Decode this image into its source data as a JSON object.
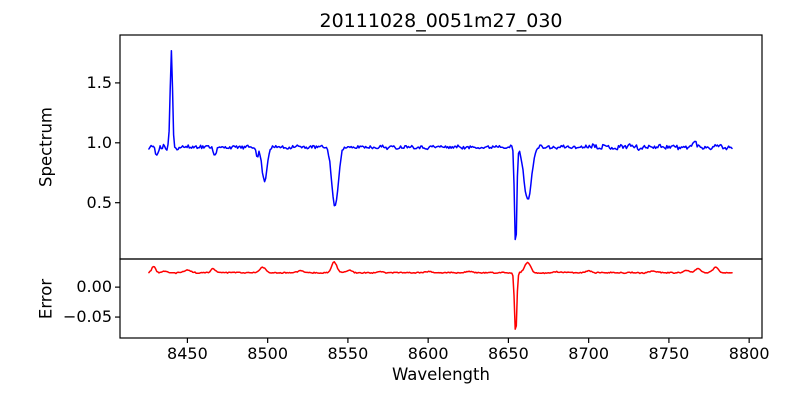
{
  "title": "20111028_0051m27_030",
  "colors": {
    "spectrum_line": "#0000ff",
    "error_line": "#ff0000",
    "axis": "#000000",
    "background": "#ffffff"
  },
  "chart_data": {
    "type": "line",
    "title": "20111028_0051m27_030",
    "xlabel": "Wavelength",
    "xlim": [
      8408,
      8808
    ],
    "x_ticks": [
      8450,
      8500,
      8550,
      8600,
      8650,
      8700,
      8750,
      8800
    ],
    "grid": false,
    "legend": "none",
    "panels": [
      {
        "name": "spectrum",
        "ylabel": "Spectrum",
        "ylim": [
          0.03,
          1.9
        ],
        "y_ticks": [
          {
            "v": 0.5,
            "label": "0.5"
          },
          {
            "v": 1.0,
            "label": "1.0"
          },
          {
            "v": 1.5,
            "label": "1.5"
          }
        ],
        "series": {
          "name": "spectrum",
          "color": "#0000ff",
          "x_start": 8426,
          "x_end": 8789,
          "x_step": 0.7,
          "base": 0.965,
          "noise": {
            "seed": 11,
            "amp": 0.02,
            "amp_left": 0.027,
            "left_until": 8460,
            "amp_right": 0.03,
            "right_from": 8700
          },
          "features": [
            {
              "center": 8431.0,
              "amp": -0.07,
              "sigma": 0.8
            },
            {
              "center": 8437.0,
              "amp": -0.05,
              "sigma": 0.5
            },
            {
              "center": 8440.0,
              "amp": 0.815,
              "sigma": 0.7
            },
            {
              "center": 8467.0,
              "amp": -0.06,
              "sigma": 0.9
            },
            {
              "center": 8493.5,
              "amp": -0.1,
              "sigma": 0.5
            },
            {
              "center": 8498.0,
              "amp": -0.29,
              "sigma": 1.6
            },
            {
              "center": 8542.0,
              "amp": -0.5,
              "sigma": 2.0
            },
            {
              "center": 8654.5,
              "amp": -0.855,
              "sigma": 0.7
            },
            {
              "center": 8662.0,
              "amp": -0.44,
              "sigma": 2.3
            },
            {
              "center": 8766.0,
              "amp": 0.04,
              "sigma": 1.2
            },
            {
              "center": 8780.0,
              "amp": 0.035,
              "sigma": 1.0
            }
          ]
        }
      },
      {
        "name": "error",
        "ylabel": "Error",
        "ylim": [
          -0.085,
          0.047
        ],
        "y_ticks": [
          {
            "v": 0.0,
            "label": "0.00"
          },
          {
            "v": -0.05,
            "label": "−0.05"
          }
        ],
        "series": {
          "name": "error",
          "color": "#ff0000",
          "x_start": 8426,
          "x_end": 8789,
          "x_step": 0.7,
          "base": 0.024,
          "noise": {
            "seed": 4,
            "amp": 0.0012,
            "amp_left": 0.0015,
            "left_until": 8460,
            "amp_right": 0.0015,
            "right_from": 8720
          },
          "features": [
            {
              "center": 8429.0,
              "amp": 0.011,
              "sigma": 1.2
            },
            {
              "center": 8436.0,
              "amp": 0.003,
              "sigma": 1.5
            },
            {
              "center": 8450.0,
              "amp": 0.004,
              "sigma": 2.0
            },
            {
              "center": 8466.0,
              "amp": 0.007,
              "sigma": 1.3
            },
            {
              "center": 8497.0,
              "amp": 0.009,
              "sigma": 1.8
            },
            {
              "center": 8520.0,
              "amp": 0.003,
              "sigma": 2.0
            },
            {
              "center": 8541.5,
              "amp": 0.018,
              "sigma": 1.6
            },
            {
              "center": 8551.0,
              "amp": 0.004,
              "sigma": 1.5
            },
            {
              "center": 8570.0,
              "amp": 0.002,
              "sigma": 2.0
            },
            {
              "center": 8600.0,
              "amp": 0.002,
              "sigma": 2.0
            },
            {
              "center": 8625.0,
              "amp": 0.002,
              "sigma": 2.0
            },
            {
              "center": 8654.5,
              "amp": -0.104,
              "sigma": 0.7
            },
            {
              "center": 8662.0,
              "amp": 0.017,
              "sigma": 1.8
            },
            {
              "center": 8680.0,
              "amp": 0.002,
              "sigma": 2.0
            },
            {
              "center": 8700.0,
              "amp": 0.003,
              "sigma": 1.8
            },
            {
              "center": 8740.0,
              "amp": 0.003,
              "sigma": 1.8
            },
            {
              "center": 8761.0,
              "amp": 0.005,
              "sigma": 1.4
            },
            {
              "center": 8768.0,
              "amp": 0.008,
              "sigma": 1.4
            },
            {
              "center": 8779.0,
              "amp": 0.009,
              "sigma": 1.6
            }
          ]
        }
      }
    ]
  }
}
